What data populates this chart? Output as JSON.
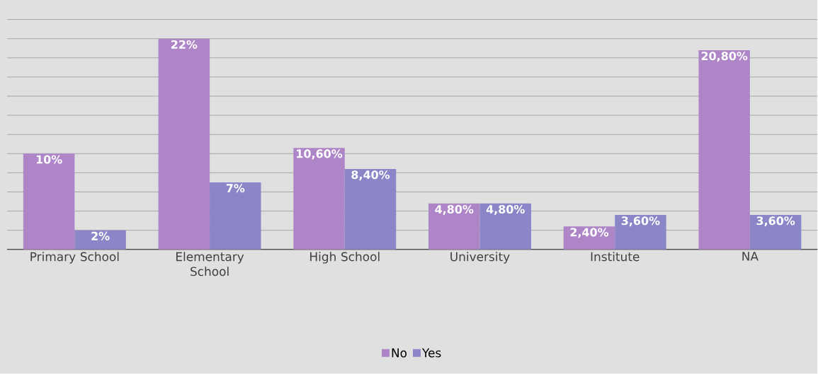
{
  "chart_data": {
    "type": "bar",
    "categories": [
      "Primary School",
      "Elementary School",
      "High School",
      "University",
      "Institute",
      "NA"
    ],
    "series": [
      {
        "name": "No",
        "color": "#ae86c8",
        "values": [
          10,
          22,
          10.6,
          4.8,
          2.4,
          20.8
        ],
        "value_labels": [
          "10%",
          "22%",
          "10,60%",
          "4,80%",
          "2,40%",
          "20,80%"
        ]
      },
      {
        "name": "Yes",
        "color": "#8a86c8",
        "values": [
          2,
          7,
          8.4,
          4.8,
          3.6,
          3.6
        ],
        "value_labels": [
          "2%",
          "7%",
          "8,40%",
          "4,80%",
          "3,60%",
          "3,60%"
        ]
      }
    ],
    "tick_labels": "x",
    "grid": "y",
    "legend": "bottom"
  }
}
